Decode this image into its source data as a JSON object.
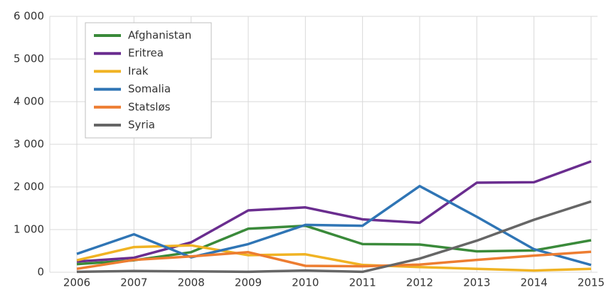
{
  "chart_data": {
    "type": "line",
    "categories": [
      "2006",
      "2007",
      "2008",
      "2009",
      "2010",
      "2011",
      "2012",
      "2013",
      "2014",
      "2015"
    ],
    "series": [
      {
        "name": "Afghanistan",
        "color": "#3a8a3a",
        "values": [
          190,
          280,
          470,
          1020,
          1090,
          660,
          650,
          490,
          510,
          750
        ]
      },
      {
        "name": "Eritrea",
        "color": "#6a2d8f",
        "values": [
          250,
          340,
          700,
          1450,
          1520,
          1240,
          1160,
          2100,
          2110,
          2600
        ]
      },
      {
        "name": "Irak",
        "color": "#f0b323",
        "values": [
          280,
          590,
          630,
          400,
          420,
          170,
          120,
          80,
          40,
          80
        ]
      },
      {
        "name": "Somalia",
        "color": "#2f75b5",
        "values": [
          430,
          890,
          350,
          660,
          1110,
          1090,
          2020,
          1300,
          540,
          170
        ]
      },
      {
        "name": "Statsløs",
        "color": "#ed7d31",
        "values": [
          80,
          290,
          370,
          470,
          150,
          140,
          180,
          290,
          390,
          480
        ]
      },
      {
        "name": "Syria",
        "color": "#666666",
        "values": [
          10,
          30,
          20,
          10,
          40,
          10,
          320,
          740,
          1230,
          1660
        ]
      }
    ],
    "ylim": [
      0,
      6000
    ],
    "yticks": [
      0,
      {
        "value": 1000,
        "label": "1 000"
      },
      {
        "value": 2000,
        "label": "2 000"
      },
      {
        "value": 3000,
        "label": "3 000"
      },
      {
        "value": 4000,
        "label": "4 000"
      },
      {
        "value": 5000,
        "label": "5 000"
      },
      {
        "value": 6000,
        "label": "6 000"
      }
    ],
    "grid": true,
    "legend": "top-left"
  }
}
